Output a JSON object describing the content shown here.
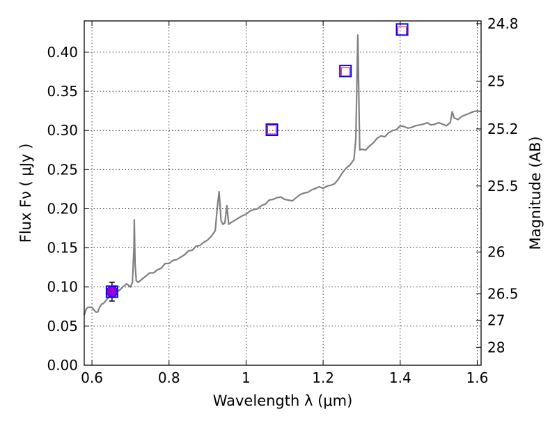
{
  "chart_data": {
    "type": "line",
    "title": "",
    "xlabel": "Wavelength  λ (μm)",
    "ylabel": "Flux  Fν  ( μJy )",
    "y2label": "Magnitude (AB)",
    "xlim": [
      0.58,
      1.61
    ],
    "ylim": [
      0.0,
      0.44
    ],
    "x_ticks": [
      0.6,
      0.8,
      1.0,
      1.2,
      1.4,
      1.6
    ],
    "x_tick_labels": [
      "0.6",
      "0.8",
      "1",
      "1.2",
      "1.4",
      "1.6"
    ],
    "y_ticks": [
      0.0,
      0.05,
      0.1,
      0.15,
      0.2,
      0.25,
      0.3,
      0.35,
      0.4
    ],
    "y_tick_labels": [
      "0.00",
      "0.05",
      "0.10",
      "0.15",
      "0.20",
      "0.25",
      "0.30",
      "0.35",
      "0.40"
    ],
    "magnitude_ticks": [
      24.8,
      25,
      25.2,
      25.5,
      26,
      26.5,
      27,
      28
    ],
    "magnitude_tick_labels": [
      "24.8",
      "25",
      "25.2",
      "25.5",
      "26",
      "26.5",
      "27",
      "28"
    ],
    "grid": true,
    "series": [
      {
        "color": "#808080",
        "x": [
          0.58,
          0.585,
          0.59,
          0.6,
          0.61,
          0.615,
          0.62,
          0.625,
          0.63,
          0.64,
          0.65,
          0.66,
          0.665,
          0.67,
          0.68,
          0.69,
          0.7,
          0.705,
          0.709,
          0.71,
          0.712,
          0.715,
          0.72,
          0.73,
          0.74,
          0.75,
          0.76,
          0.77,
          0.78,
          0.79,
          0.8,
          0.81,
          0.82,
          0.83,
          0.84,
          0.85,
          0.86,
          0.87,
          0.88,
          0.89,
          0.9,
          0.91,
          0.92,
          0.925,
          0.93,
          0.935,
          0.94,
          0.945,
          0.95,
          0.955,
          0.96,
          0.97,
          0.98,
          0.99,
          1.0,
          1.01,
          1.02,
          1.03,
          1.04,
          1.05,
          1.06,
          1.07,
          1.08,
          1.09,
          1.1,
          1.11,
          1.12,
          1.13,
          1.14,
          1.15,
          1.16,
          1.17,
          1.18,
          1.19,
          1.2,
          1.21,
          1.22,
          1.23,
          1.24,
          1.25,
          1.26,
          1.27,
          1.28,
          1.285,
          1.29,
          1.295,
          1.3,
          1.31,
          1.32,
          1.33,
          1.34,
          1.35,
          1.36,
          1.37,
          1.38,
          1.39,
          1.4,
          1.41,
          1.42,
          1.43,
          1.44,
          1.45,
          1.46,
          1.47,
          1.48,
          1.49,
          1.5,
          1.51,
          1.52,
          1.53,
          1.535,
          1.54,
          1.55,
          1.56,
          1.57,
          1.58,
          1.59,
          1.6,
          1.61
        ],
        "y": [
          0.064,
          0.072,
          0.074,
          0.074,
          0.068,
          0.068,
          0.074,
          0.078,
          0.079,
          0.085,
          0.09,
          0.094,
          0.096,
          0.095,
          0.1,
          0.104,
          0.1,
          0.106,
          0.15,
          0.186,
          0.13,
          0.108,
          0.106,
          0.11,
          0.114,
          0.118,
          0.118,
          0.122,
          0.124,
          0.13,
          0.13,
          0.134,
          0.135,
          0.138,
          0.141,
          0.146,
          0.147,
          0.152,
          0.153,
          0.157,
          0.16,
          0.165,
          0.172,
          0.2,
          0.222,
          0.185,
          0.18,
          0.182,
          0.204,
          0.18,
          0.182,
          0.185,
          0.188,
          0.191,
          0.193,
          0.197,
          0.199,
          0.2,
          0.204,
          0.206,
          0.211,
          0.212,
          0.214,
          0.215,
          0.212,
          0.211,
          0.21,
          0.214,
          0.218,
          0.22,
          0.221,
          0.224,
          0.226,
          0.228,
          0.226,
          0.229,
          0.23,
          0.232,
          0.238,
          0.246,
          0.252,
          0.256,
          0.263,
          0.29,
          0.422,
          0.275,
          0.276,
          0.275,
          0.28,
          0.284,
          0.29,
          0.293,
          0.292,
          0.297,
          0.3,
          0.301,
          0.306,
          0.305,
          0.303,
          0.304,
          0.306,
          0.307,
          0.308,
          0.31,
          0.307,
          0.308,
          0.31,
          0.308,
          0.306,
          0.31,
          0.324,
          0.316,
          0.314,
          0.318,
          0.32,
          0.322,
          0.324,
          0.325,
          0.324
        ]
      }
    ],
    "photometry": [
      {
        "x": 0.652,
        "y": 0.094,
        "err": 0.012,
        "face": "#9400d3",
        "edge": "#0000ff",
        "marker": "circle"
      },
      {
        "x": 1.067,
        "y": 0.301,
        "err": 0,
        "face": "none",
        "edge": "#ff0000",
        "marker": "square"
      },
      {
        "x": 1.258,
        "y": 0.375,
        "err": 0,
        "face": "none",
        "edge": "#ff0000",
        "marker": "square"
      },
      {
        "x": 1.405,
        "y": 0.427,
        "err": 0,
        "face": "none",
        "edge": "#ff0000",
        "marker": "square"
      }
    ],
    "model_boxes": [
      {
        "x": 0.652,
        "y": 0.094,
        "color": "#0000ff"
      },
      {
        "x": 1.067,
        "y": 0.301,
        "color": "#0000ff"
      },
      {
        "x": 1.258,
        "y": 0.376,
        "color": "#0000ff"
      },
      {
        "x": 1.405,
        "y": 0.429,
        "color": "#0000ff"
      }
    ]
  }
}
